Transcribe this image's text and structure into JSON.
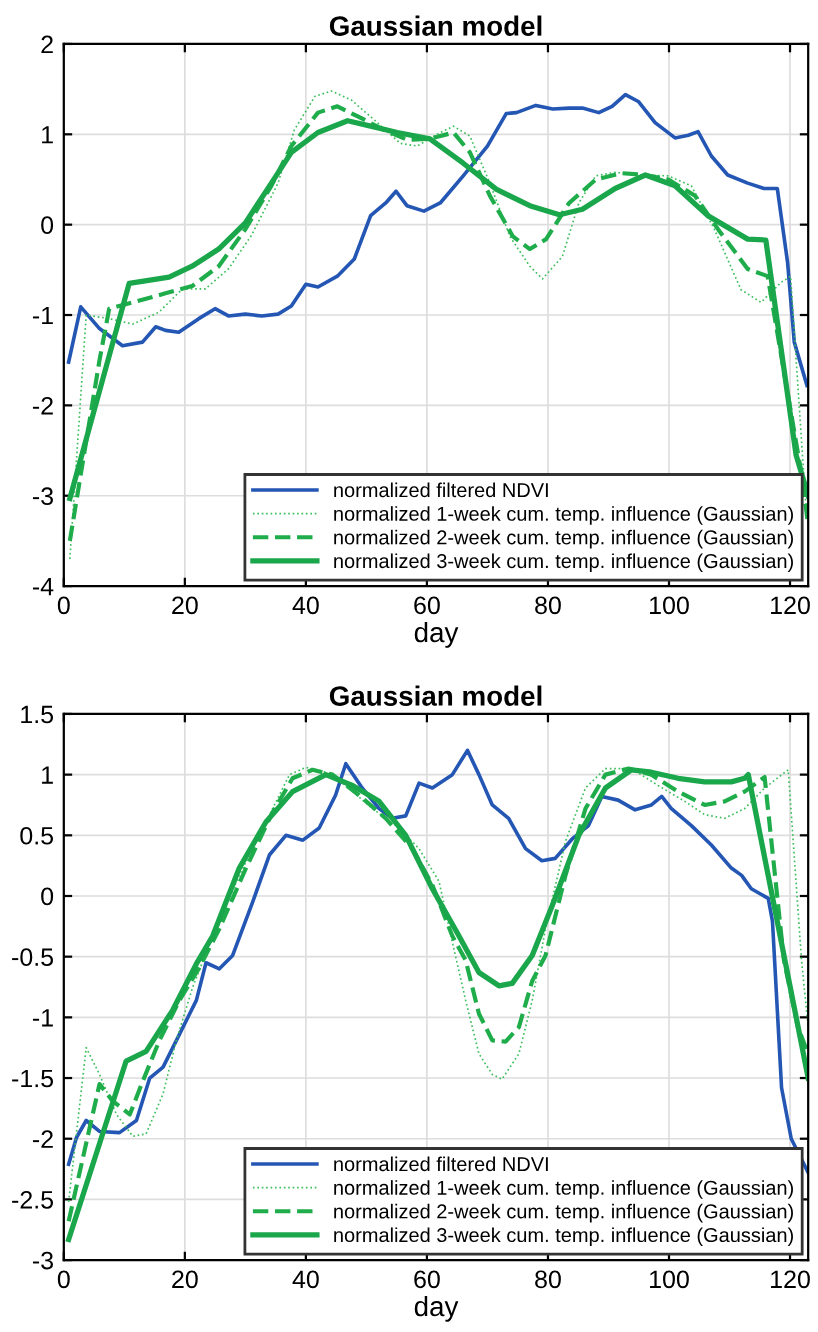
{
  "chart_data": [
    {
      "type": "line",
      "title": "Gaussian model",
      "xlabel": "day",
      "xlim": [
        0,
        123
      ],
      "xticks": [
        0,
        20,
        40,
        60,
        80,
        100,
        120
      ],
      "ylim": [
        -4,
        2
      ],
      "yticks": [
        -4,
        -3,
        -2,
        -1,
        0,
        1,
        2
      ],
      "grid": true,
      "legend": "bottom right",
      "series": [
        {
          "name": "normalized filtered NDVI",
          "color": "#2456b4",
          "line_style": "solid",
          "x": [
            0.8,
            2.8,
            5.9,
            9.7,
            13,
            15.2,
            16.8,
            19,
            22.3,
            25,
            27.2,
            30,
            32.7,
            35.4,
            37.6,
            40,
            42,
            45.2,
            48,
            50.7,
            53.2,
            54.9,
            56.7,
            59.5,
            62.2,
            66,
            70,
            73.1,
            74.8,
            78,
            80.8,
            83.5,
            85.7,
            88.4,
            90.6,
            92.8,
            95,
            97.7,
            101,
            103.2,
            104.8,
            107,
            109.7,
            113,
            115.7,
            117.9,
            119.6,
            120.7,
            122.8
          ],
          "values": [
            -1.52,
            -0.91,
            -1.15,
            -1.34,
            -1.3,
            -1.13,
            -1.17,
            -1.19,
            -1.04,
            -0.93,
            -1.01,
            -0.99,
            -1.01,
            -0.99,
            -0.9,
            -0.66,
            -0.69,
            -0.57,
            -0.38,
            0.1,
            0.24,
            0.37,
            0.21,
            0.15,
            0.24,
            0.54,
            0.87,
            1.23,
            1.24,
            1.32,
            1.28,
            1.29,
            1.29,
            1.24,
            1.31,
            1.44,
            1.36,
            1.13,
            0.96,
            0.99,
            1.03,
            0.76,
            0.55,
            0.46,
            0.4,
            0.4,
            -0.42,
            -1.3,
            -1.78
          ]
        },
        {
          "name": "normalized 1-week cum. temp. influence (Gaussian)",
          "color": "#3cbf5c",
          "line_style": "dotted",
          "x": [
            1,
            3.7,
            7.5,
            11.4,
            15.7,
            19.6,
            23.4,
            27.2,
            31,
            35.4,
            38.1,
            41.5,
            44.2,
            47.5,
            51.8,
            55.6,
            58.4,
            62.2,
            64.4,
            67.1,
            70.4,
            73.7,
            77,
            79.1,
            82.4,
            85.1,
            87.9,
            91.1,
            95.5,
            99.9,
            103.7,
            107.5,
            111.9,
            115.2,
            118.5,
            120.1,
            122.5,
            123
          ],
          "values": [
            -3.7,
            -1.0,
            -1.04,
            -1.1,
            -0.97,
            -0.71,
            -0.71,
            -0.49,
            -0.12,
            0.46,
            1.05,
            1.42,
            1.48,
            1.38,
            1.13,
            0.9,
            0.87,
            1.02,
            1.09,
            0.98,
            0.46,
            -0.13,
            -0.46,
            -0.6,
            -0.35,
            0.24,
            0.54,
            0.58,
            0.55,
            0.54,
            0.43,
            -0.05,
            -0.72,
            -0.86,
            -0.64,
            -0.57,
            -3.0,
            -3.3
          ]
        },
        {
          "name": "normalized 2-week cum. temp. influence (Gaussian)",
          "color": "#1fad4b",
          "line_style": "dashed",
          "x": [
            1,
            5.9,
            7.5,
            11.4,
            16.8,
            21.2,
            25.6,
            30,
            34.3,
            37.6,
            42,
            45.2,
            48.5,
            52.9,
            56.7,
            60.5,
            64.4,
            67.1,
            70.4,
            74.2,
            77,
            79.7,
            83.5,
            87.9,
            92.2,
            96.1,
            99.9,
            104.3,
            108.1,
            113,
            116.3,
            122,
            123
          ],
          "values": [
            -3.5,
            -1.5,
            -0.93,
            -0.86,
            -0.76,
            -0.68,
            -0.46,
            -0.05,
            0.43,
            0.87,
            1.24,
            1.31,
            1.2,
            1.05,
            0.94,
            0.95,
            1.02,
            0.8,
            0.32,
            -0.13,
            -0.27,
            -0.16,
            0.24,
            0.5,
            0.57,
            0.55,
            0.5,
            0.32,
            -0.05,
            -0.49,
            -0.57,
            -2.8,
            -3.33
          ]
        },
        {
          "name": "normalized 3-week cum. temp. influence (Gaussian)",
          "color": "#1aa64a",
          "line_style": "solid",
          "x": [
            1,
            10.8,
            17.4,
            21.2,
            25.6,
            30,
            34.3,
            37.6,
            42,
            46.9,
            50.7,
            55.1,
            60.5,
            66,
            71.5,
            77,
            81.9,
            85.7,
            91.1,
            96.1,
            101,
            106.4,
            113,
            116,
            121,
            123
          ],
          "values": [
            -3.03,
            -0.65,
            -0.58,
            -0.46,
            -0.27,
            0.02,
            0.46,
            0.8,
            1.02,
            1.15,
            1.09,
            1.02,
            0.95,
            0.68,
            0.39,
            0.21,
            0.11,
            0.17,
            0.4,
            0.55,
            0.43,
            0.1,
            -0.16,
            -0.17,
            -2.55,
            -3.0
          ]
        }
      ]
    },
    {
      "type": "line",
      "title": "Gaussian model",
      "xlabel": "day",
      "xlim": [
        0,
        123
      ],
      "xticks": [
        0,
        20,
        40,
        60,
        80,
        100,
        120
      ],
      "ylim": [
        -3,
        1.5
      ],
      "yticks": [
        -3,
        -2.5,
        -2,
        -1.5,
        -1,
        -0.5,
        0,
        0.5,
        1,
        1.5
      ],
      "grid": true,
      "legend": "bottom right",
      "series": [
        {
          "name": "normalized filtered NDVI",
          "color": "#2456b4",
          "line_style": "solid",
          "x": [
            0.8,
            2.1,
            3.7,
            5.9,
            9.2,
            12,
            14.2,
            16.4,
            19.1,
            21.9,
            23.5,
            25.7,
            27.9,
            31.2,
            34,
            36.7,
            39.5,
            42.2,
            44.9,
            46.6,
            49.3,
            52.1,
            54.3,
            56.5,
            58.7,
            60.9,
            64.2,
            66.7,
            68.6,
            70.8,
            73.5,
            76.3,
            79,
            81.2,
            84,
            86.7,
            88.9,
            91.6,
            94.4,
            97.1,
            98.8,
            100.4,
            103.7,
            107,
            110.3,
            112,
            113.6,
            116.4,
            117.1,
            118.6,
            120.2,
            123
          ],
          "values": [
            -2.21,
            -1.99,
            -1.85,
            -1.94,
            -1.95,
            -1.85,
            -1.5,
            -1.41,
            -1.14,
            -0.86,
            -0.55,
            -0.6,
            -0.49,
            -0.05,
            0.34,
            0.5,
            0.46,
            0.56,
            0.83,
            1.09,
            0.89,
            0.72,
            0.64,
            0.66,
            0.93,
            0.89,
            1.0,
            1.2,
            1.0,
            0.75,
            0.64,
            0.39,
            0.29,
            0.31,
            0.47,
            0.58,
            0.82,
            0.79,
            0.71,
            0.75,
            0.82,
            0.72,
            0.58,
            0.42,
            0.23,
            0.17,
            0.06,
            -0.02,
            -0.21,
            -1.58,
            -2.0,
            -2.28
          ]
        },
        {
          "name": "normalized 1-week cum. temp. influence (Gaussian)",
          "color": "#3cbf5c",
          "line_style": "dotted",
          "x": [
            0.8,
            3.7,
            5.9,
            8.7,
            11.4,
            13.6,
            16.4,
            18.6,
            21.3,
            24.6,
            29,
            33.4,
            37.3,
            40,
            43.3,
            46.6,
            51,
            55.4,
            58.7,
            62,
            64.2,
            66.4,
            68.6,
            70.8,
            72.4,
            75.2,
            77.4,
            79.6,
            82.9,
            86.2,
            89.5,
            93.8,
            98.2,
            102.6,
            105.9,
            109.2,
            112.5,
            115.8,
            119.7,
            121.9,
            123
          ],
          "values": [
            -2.52,
            -1.25,
            -1.47,
            -1.8,
            -1.98,
            -1.96,
            -1.63,
            -1.19,
            -0.75,
            -0.33,
            0.17,
            0.61,
            1.0,
            1.06,
            1.02,
            0.91,
            0.72,
            0.56,
            0.39,
            0.12,
            -0.38,
            -0.86,
            -1.3,
            -1.47,
            -1.51,
            -1.3,
            -0.86,
            -0.27,
            0.45,
            0.89,
            1.05,
            1.05,
            0.91,
            0.78,
            0.67,
            0.64,
            0.72,
            0.89,
            1.04,
            -0.53,
            -1.08
          ]
        },
        {
          "name": "normalized 2-week cum. temp. influence (Gaussian)",
          "color": "#1fad4b",
          "line_style": "dashed",
          "x": [
            0.8,
            5.9,
            8.1,
            10.9,
            13.1,
            15.8,
            19.1,
            22.4,
            25.7,
            30.1,
            34.5,
            37.8,
            41.1,
            44.4,
            48.8,
            53.2,
            57.6,
            60.9,
            64.2,
            66.4,
            68.6,
            70.8,
            73,
            75.2,
            77.4,
            79.6,
            82.9,
            86.2,
            89.5,
            93.3,
            97.1,
            101.5,
            105.9,
            109.2,
            112.5,
            115.8,
            119,
            121.3,
            123
          ],
          "values": [
            -2.68,
            -1.55,
            -1.69,
            -1.8,
            -1.52,
            -1.19,
            -0.86,
            -0.59,
            -0.27,
            0.23,
            0.69,
            0.97,
            1.04,
            1.0,
            0.83,
            0.64,
            0.39,
            0.09,
            -0.33,
            -0.53,
            -0.97,
            -1.19,
            -1.2,
            -1.08,
            -0.7,
            -0.49,
            0.17,
            0.72,
            1.0,
            1.05,
            1.0,
            0.86,
            0.75,
            0.78,
            0.86,
            0.98,
            -0.53,
            -1.08,
            -1.3
          ]
        },
        {
          "name": "normalized 3-week cum. temp. influence (Gaussian)",
          "color": "#1aa64a",
          "line_style": "solid",
          "x": [
            0.8,
            10.3,
            13.6,
            18,
            21.9,
            24.6,
            29,
            33.4,
            37.8,
            43.3,
            47.7,
            52.1,
            56.5,
            60.9,
            65.3,
            68.6,
            71.9,
            74.1,
            77.4,
            80.7,
            85.1,
            89.5,
            93.8,
            97.1,
            101.5,
            105.9,
            110.3,
            112.5,
            113.1,
            123
          ],
          "values": [
            -2.83,
            -1.36,
            -1.28,
            -0.94,
            -0.56,
            -0.33,
            0.23,
            0.61,
            0.86,
            1.0,
            0.91,
            0.78,
            0.5,
            0.06,
            -0.33,
            -0.63,
            -0.74,
            -0.72,
            -0.49,
            -0.08,
            0.5,
            0.89,
            1.04,
            1.02,
            0.97,
            0.94,
            0.94,
            0.97,
            1.0,
            -1.5
          ]
        }
      ]
    }
  ]
}
